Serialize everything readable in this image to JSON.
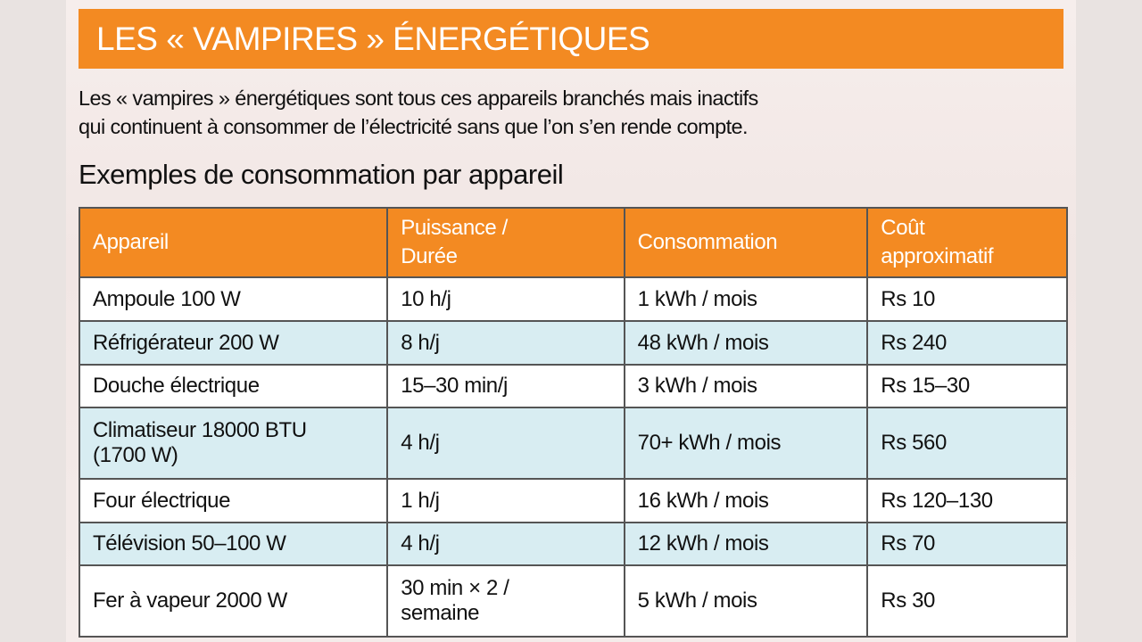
{
  "title": "LES « VAMPIRES » ÉNERGÉTIQUES",
  "intro": [
    "Les « vampires » énergétiques sont tous ces appareils branchés mais inactifs",
    "qui continuent à consommer de l’électricité sans que l’on s’en rende compte."
  ],
  "subtitle": "Exemples de consommation par appareil",
  "colors": {
    "accent": "#f38a22",
    "row_alt": "#d8edf2"
  },
  "table": {
    "headers": [
      [
        "Appareil"
      ],
      [
        "Puissance /",
        "Durée"
      ],
      [
        "Consommation"
      ],
      [
        "Coût",
        "approximatif"
      ]
    ],
    "rows": [
      [
        [
          "Ampoule 100 W"
        ],
        [
          "10 h/j"
        ],
        [
          "1 kWh / mois"
        ],
        [
          "Rs 10"
        ]
      ],
      [
        [
          "Réfrigérateur 200 W"
        ],
        [
          "8 h/j"
        ],
        [
          "48 kWh / mois"
        ],
        [
          "Rs 240"
        ]
      ],
      [
        [
          "Douche électrique"
        ],
        [
          "15–30 min/j"
        ],
        [
          "3 kWh / mois"
        ],
        [
          "Rs 15–30"
        ]
      ],
      [
        [
          "Climatiseur 18000 BTU",
          "(1700 W)"
        ],
        [
          "4 h/j"
        ],
        [
          "70+ kWh / mois"
        ],
        [
          "Rs 560"
        ]
      ],
      [
        [
          "Four électrique"
        ],
        [
          "1 h/j"
        ],
        [
          "16 kWh / mois"
        ],
        [
          "Rs 120–130"
        ]
      ],
      [
        [
          "Télévision 50–100 W"
        ],
        [
          "4 h/j"
        ],
        [
          "12 kWh / mois"
        ],
        [
          "Rs 70"
        ]
      ],
      [
        [
          "Fer à vapeur 2000 W"
        ],
        [
          "30 min × 2 /",
          "semaine"
        ],
        [
          "5 kWh / mois"
        ],
        [
          "Rs 30"
        ]
      ]
    ]
  }
}
